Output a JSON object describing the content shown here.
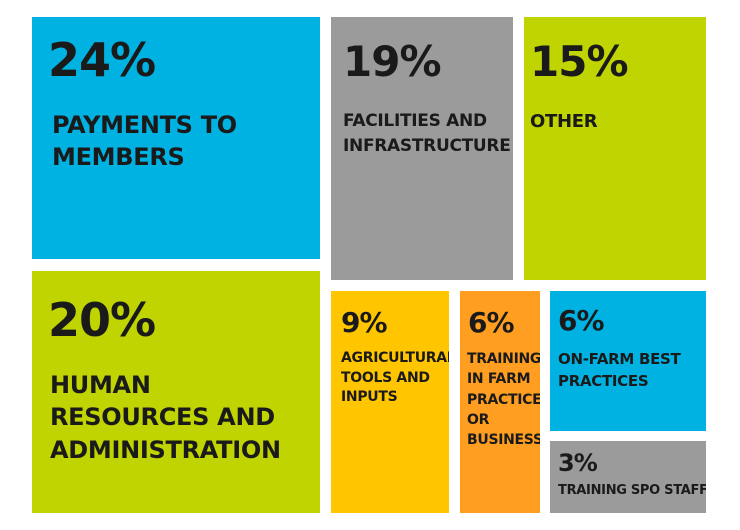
{
  "chart_data": {
    "type": "treemap",
    "items": [
      {
        "id": "payments",
        "percent_label": "24%",
        "value": 24,
        "label": "PAYMENTS TO MEMBERS",
        "color": "#00b2e2"
      },
      {
        "id": "facilities",
        "percent_label": "19%",
        "value": 19,
        "label": "FACILITIES AND INFRASTRUCTURE",
        "color": "#9b9b9b"
      },
      {
        "id": "other",
        "percent_label": "15%",
        "value": 15,
        "label": "OTHER",
        "color": "#bfd400"
      },
      {
        "id": "hr",
        "percent_label": "20%",
        "value": 20,
        "label": "HUMAN RESOURCES AND ADMINISTRATION",
        "color": "#bfd400"
      },
      {
        "id": "tools",
        "percent_label": "9%",
        "value": 9,
        "label": "AGRICULTURAL TOOLS AND INPUTS",
        "color": "#ffc600"
      },
      {
        "id": "training_farm",
        "percent_label": "6%",
        "value": 6,
        "label": "TRAINING IN FARM PRACTICE OR BUSINESS",
        "color": "#ff9e21"
      },
      {
        "id": "onfarm",
        "percent_label": "6%",
        "value": 6,
        "label": "ON-FARM BEST PRACTICES",
        "color": "#00b2e2"
      },
      {
        "id": "spo",
        "percent_label": "3%",
        "value": 3,
        "label": "TRAINING SPO STAFF",
        "color": "#9b9b9b"
      }
    ]
  }
}
